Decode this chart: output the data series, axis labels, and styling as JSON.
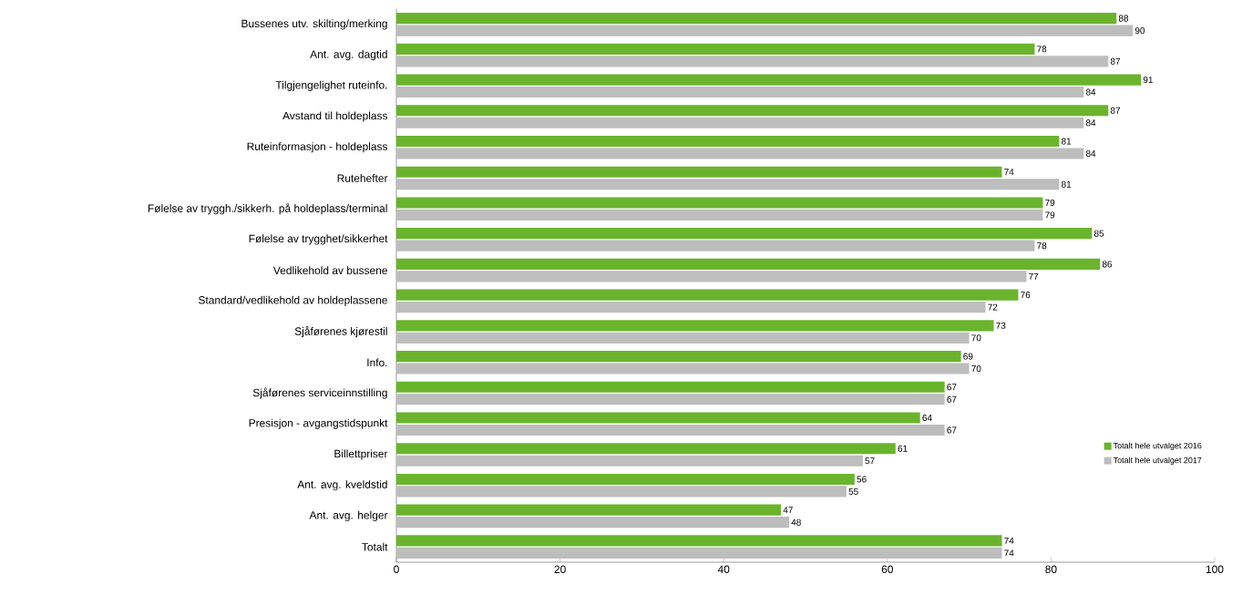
{
  "chart_data": {
    "type": "bar",
    "orientation": "horizontal",
    "categories": [
      "Bussenes utv. skilting/merking",
      "Ant. avg. dagtid",
      "Tilgjengelighet ruteinfo.",
      "Avstand til holdeplass",
      "Ruteinformasjon - holdeplass",
      "Rutehefter",
      "Følelse av tryggh./sikkerh. på holdeplass/terminal",
      "Følelse av trygghet/sikkerhet",
      "Vedlikehold av bussene",
      "Standard/vedlikehold av holdeplassene",
      "Sjåførenes kjørestil",
      "Info.",
      "Sjåførenes serviceinnstilling",
      "Presisjon - avgangstidspunkt",
      "Billettpriser",
      "Ant. avg. kveldstid",
      "Ant. avg. helger",
      "Totalt"
    ],
    "series": [
      {
        "name": "Totalt hele utvalget 2016",
        "color": "#6ab42d",
        "values": [
          88,
          78,
          91,
          87,
          81,
          74,
          79,
          85,
          86,
          76,
          73,
          69,
          67,
          64,
          61,
          56,
          47,
          74
        ]
      },
      {
        "name": "Totalt hele utvalget 2017",
        "color": "#bdbdbd",
        "values": [
          90,
          87,
          84,
          84,
          84,
          81,
          79,
          78,
          77,
          72,
          70,
          70,
          67,
          67,
          57,
          55,
          48,
          74
        ]
      }
    ],
    "xlim": [
      0,
      100
    ],
    "xticks": [
      0,
      20,
      40,
      60,
      80,
      100
    ],
    "data_labels": true,
    "grid": false,
    "legend": "bottom right"
  }
}
